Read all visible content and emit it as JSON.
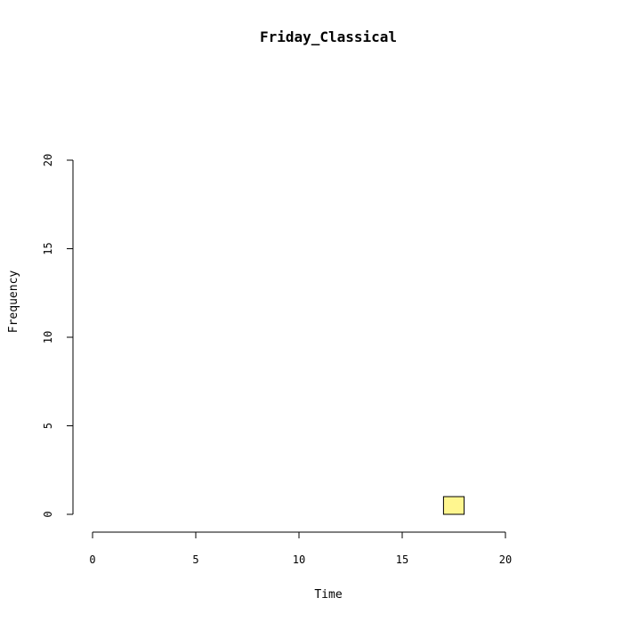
{
  "chart_data": {
    "type": "bar",
    "title": "Friday_Classical",
    "xlabel": "Time",
    "ylabel": "Frequency",
    "xlim": [
      0,
      24
    ],
    "ylim": [
      0,
      20
    ],
    "x_ticks": [
      0,
      5,
      10,
      15,
      20
    ],
    "y_ticks": [
      0,
      5,
      10,
      15,
      20
    ],
    "bins": [
      {
        "start": 0,
        "end": 1,
        "count": 0
      },
      {
        "start": 1,
        "end": 2,
        "count": 0
      },
      {
        "start": 2,
        "end": 3,
        "count": 0
      },
      {
        "start": 3,
        "end": 4,
        "count": 0
      },
      {
        "start": 4,
        "end": 5,
        "count": 0
      },
      {
        "start": 5,
        "end": 6,
        "count": 0
      },
      {
        "start": 6,
        "end": 7,
        "count": 0
      },
      {
        "start": 7,
        "end": 8,
        "count": 0
      },
      {
        "start": 8,
        "end": 9,
        "count": 0
      },
      {
        "start": 9,
        "end": 10,
        "count": 0
      },
      {
        "start": 10,
        "end": 11,
        "count": 0
      },
      {
        "start": 11,
        "end": 12,
        "count": 0
      },
      {
        "start": 12,
        "end": 13,
        "count": 0
      },
      {
        "start": 13,
        "end": 14,
        "count": 0
      },
      {
        "start": 14,
        "end": 15,
        "count": 0
      },
      {
        "start": 15,
        "end": 16,
        "count": 0
      },
      {
        "start": 16,
        "end": 17,
        "count": 0
      },
      {
        "start": 17,
        "end": 18,
        "count": 1
      },
      {
        "start": 18,
        "end": 19,
        "count": 0
      },
      {
        "start": 19,
        "end": 20,
        "count": 0
      },
      {
        "start": 20,
        "end": 21,
        "count": 0
      },
      {
        "start": 21,
        "end": 22,
        "count": 0
      },
      {
        "start": 22,
        "end": 23,
        "count": 0
      },
      {
        "start": 23,
        "end": 24,
        "count": 0
      }
    ],
    "bar_fill": "#fff68f",
    "bar_stroke": "#000000",
    "grid": false,
    "legend": "none"
  }
}
